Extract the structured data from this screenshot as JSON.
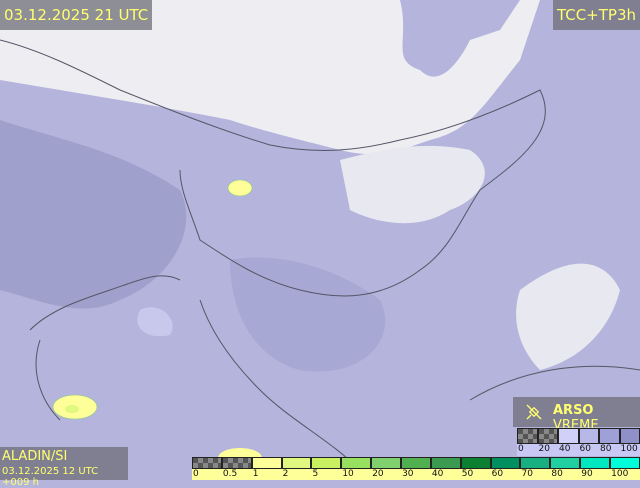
{
  "header": {
    "valid_time": "03.12.2025 21 UTC",
    "product": "TCC+TP3h"
  },
  "footer": {
    "model": "ALADIN/SI",
    "run": "03.12.2025 12 UTC +009 h"
  },
  "brand": {
    "icon": "satellite-icon",
    "name_bold": "ARSO",
    "name_light": " VREME"
  },
  "cloud_legend": {
    "labels": [
      "0",
      "20",
      "40",
      "60",
      "80",
      "100"
    ],
    "colors": [
      "checker",
      "checker",
      "#d0d0f8",
      "#b8b8e8",
      "#a0a0d8",
      "#9090c8"
    ]
  },
  "precip_legend": {
    "labels": [
      "0",
      "0.5",
      "1",
      "2",
      "5",
      "10",
      "20",
      "30",
      "40",
      "50",
      "60",
      "70",
      "80",
      "90",
      "100"
    ],
    "colors": [
      "checker",
      "checker",
      "#ffff99",
      "#e0f880",
      "#c8f060",
      "#98e060",
      "#80d070",
      "#50b050",
      "#3a9a50",
      "#0a8030",
      "#009060",
      "#18b080",
      "#20d0a0",
      "#00e8c0",
      "#00ffd8"
    ]
  },
  "colors": {
    "label_text": "#ffff70",
    "clear_sky": "#f0f0f0",
    "cloud": "#b4b4dc",
    "precip_light": "#ffff99"
  }
}
